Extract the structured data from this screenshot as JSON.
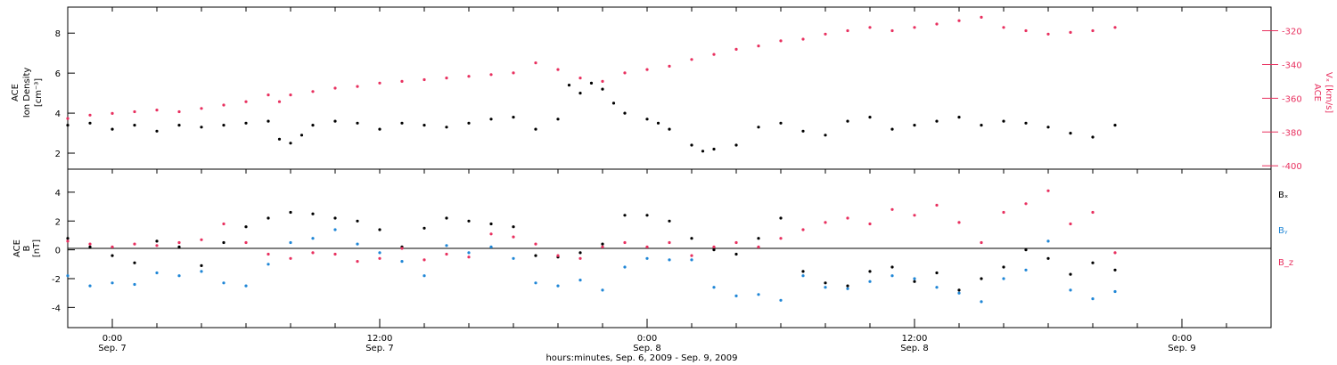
{
  "colors": {
    "black": "#000000",
    "pink": "#e8305f",
    "blue": "#1f86d6"
  },
  "chart_data": [
    {
      "type": "scatter",
      "panel": "top",
      "xlabel": "hours:minutes, Sep. 6, 2009 - Sep. 9, 2009",
      "x_ticks": [
        {
          "time": "0:00",
          "date": "Sep. 7",
          "hour": 24
        },
        {
          "time": "12:00",
          "date": "Sep. 7",
          "hour": 36
        },
        {
          "time": "0:00",
          "date": "Sep. 8",
          "hour": 48
        },
        {
          "time": "12:00",
          "date": "Sep. 8",
          "hour": 60
        },
        {
          "time": "0:00",
          "date": "Sep. 9",
          "hour": 72
        }
      ],
      "xlim_hours": [
        22,
        76
      ],
      "ylabel_left": [
        "ACE",
        "Ion Density",
        "[cm⁻³]"
      ],
      "ylim_left": [
        1.2,
        9.3
      ],
      "yticks_left": [
        2,
        4,
        6,
        8
      ],
      "ylabel_right": [
        "ACE",
        "Vₓ [km/s]"
      ],
      "ylim_right": [
        -402,
        -306
      ],
      "yticks_right": [
        -320,
        -340,
        -360,
        -380,
        -400
      ],
      "series": [
        {
          "color": "#000000",
          "axis": "left",
          "points": [
            [
              22,
              3.4
            ],
            [
              23,
              3.5
            ],
            [
              24,
              3.2
            ],
            [
              25,
              3.4
            ],
            [
              26,
              3.1
            ],
            [
              27,
              3.4
            ],
            [
              28,
              3.3
            ],
            [
              29,
              3.4
            ],
            [
              30,
              3.5
            ],
            [
              31,
              3.6
            ],
            [
              31.5,
              2.7
            ],
            [
              32,
              2.5
            ],
            [
              32.5,
              2.9
            ],
            [
              33,
              3.4
            ],
            [
              34,
              3.6
            ],
            [
              35,
              3.5
            ],
            [
              36,
              3.2
            ],
            [
              37,
              3.5
            ],
            [
              38,
              3.4
            ],
            [
              39,
              3.3
            ],
            [
              40,
              3.5
            ],
            [
              41,
              3.7
            ],
            [
              42,
              3.8
            ],
            [
              43,
              3.2
            ],
            [
              44,
              3.7
            ],
            [
              44.5,
              5.4
            ],
            [
              45,
              5.0
            ],
            [
              45.5,
              5.5
            ],
            [
              46,
              5.2
            ],
            [
              46.5,
              4.5
            ],
            [
              47,
              4.0
            ],
            [
              48,
              3.7
            ],
            [
              48.5,
              3.5
            ],
            [
              49,
              3.2
            ],
            [
              50,
              2.4
            ],
            [
              50.5,
              2.1
            ],
            [
              51,
              2.2
            ],
            [
              52,
              2.4
            ],
            [
              53,
              3.3
            ],
            [
              54,
              3.5
            ],
            [
              55,
              3.1
            ],
            [
              56,
              2.9
            ],
            [
              57,
              3.6
            ],
            [
              58,
              3.8
            ],
            [
              59,
              3.2
            ],
            [
              60,
              3.4
            ],
            [
              61,
              3.6
            ],
            [
              62,
              3.8
            ],
            [
              63,
              3.4
            ],
            [
              64,
              3.6
            ],
            [
              65,
              3.5
            ],
            [
              66,
              3.3
            ],
            [
              67,
              3.0
            ],
            [
              68,
              2.8
            ],
            [
              69,
              3.4
            ]
          ]
        },
        {
          "color": "#e8305f",
          "axis": "right",
          "points": [
            [
              22,
              -372
            ],
            [
              23,
              -370
            ],
            [
              24,
              -369
            ],
            [
              25,
              -368
            ],
            [
              26,
              -367
            ],
            [
              27,
              -368
            ],
            [
              28,
              -366
            ],
            [
              29,
              -364
            ],
            [
              30,
              -362
            ],
            [
              31,
              -358
            ],
            [
              31.5,
              -362
            ],
            [
              32,
              -358
            ],
            [
              33,
              -356
            ],
            [
              34,
              -354
            ],
            [
              35,
              -353
            ],
            [
              36,
              -351
            ],
            [
              37,
              -350
            ],
            [
              38,
              -349
            ],
            [
              39,
              -348
            ],
            [
              40,
              -347
            ],
            [
              41,
              -346
            ],
            [
              42,
              -345
            ],
            [
              43,
              -339
            ],
            [
              44,
              -343
            ],
            [
              45,
              -348
            ],
            [
              46,
              -350
            ],
            [
              47,
              -345
            ],
            [
              48,
              -343
            ],
            [
              49,
              -341
            ],
            [
              50,
              -337
            ],
            [
              51,
              -334
            ],
            [
              52,
              -331
            ],
            [
              53,
              -329
            ],
            [
              54,
              -326
            ],
            [
              55,
              -325
            ],
            [
              56,
              -322
            ],
            [
              57,
              -320
            ],
            [
              58,
              -318
            ],
            [
              59,
              -320
            ],
            [
              60,
              -318
            ],
            [
              61,
              -316
            ],
            [
              62,
              -314
            ],
            [
              63,
              -312
            ],
            [
              64,
              -318
            ],
            [
              65,
              -320
            ],
            [
              66,
              -322
            ],
            [
              67,
              -321
            ],
            [
              68,
              -320
            ],
            [
              69,
              -318
            ]
          ]
        }
      ]
    },
    {
      "type": "scatter",
      "panel": "bottom",
      "ylabel": [
        "ACE",
        "B",
        "[nT]"
      ],
      "ylim": [
        -5.4,
        5.6
      ],
      "yticks": [
        4,
        2,
        0,
        -2,
        -4
      ],
      "zero_line": true,
      "legend": [
        "Bₓ",
        "Bᵧ",
        "B_z"
      ],
      "series": [
        {
          "name": "Bₓ",
          "color": "#000000",
          "points": [
            [
              22,
              0.8
            ],
            [
              23,
              0.2
            ],
            [
              24,
              -0.4
            ],
            [
              25,
              -0.9
            ],
            [
              26,
              0.6
            ],
            [
              27,
              0.2
            ],
            [
              28,
              -1.1
            ],
            [
              29,
              0.5
            ],
            [
              30,
              1.6
            ],
            [
              31,
              2.2
            ],
            [
              32,
              2.6
            ],
            [
              33,
              2.5
            ],
            [
              34,
              2.2
            ],
            [
              35,
              2.0
            ],
            [
              36,
              1.4
            ],
            [
              37,
              0.2
            ],
            [
              38,
              1.5
            ],
            [
              39,
              2.2
            ],
            [
              40,
              2.0
            ],
            [
              41,
              1.8
            ],
            [
              42,
              1.6
            ],
            [
              43,
              -0.4
            ],
            [
              44,
              -0.5
            ],
            [
              45,
              -0.2
            ],
            [
              46,
              0.4
            ],
            [
              47,
              2.4
            ],
            [
              48,
              2.4
            ],
            [
              49,
              2.0
            ],
            [
              50,
              0.8
            ],
            [
              51,
              0.0
            ],
            [
              52,
              -0.3
            ],
            [
              53,
              0.8
            ],
            [
              54,
              2.2
            ],
            [
              55,
              -1.5
            ],
            [
              56,
              -2.3
            ],
            [
              57,
              -2.5
            ],
            [
              58,
              -1.5
            ],
            [
              59,
              -1.2
            ],
            [
              60,
              -2.2
            ],
            [
              61,
              -1.6
            ],
            [
              62,
              -2.8
            ],
            [
              63,
              -2.0
            ],
            [
              64,
              -1.2
            ],
            [
              65,
              0.0
            ],
            [
              66,
              -0.6
            ],
            [
              67,
              -1.7
            ],
            [
              68,
              -0.9
            ],
            [
              69,
              -1.4
            ]
          ]
        },
        {
          "name": "Bᵧ",
          "color": "#1f86d6",
          "points": [
            [
              22,
              -1.8
            ],
            [
              23,
              -2.5
            ],
            [
              24,
              -2.3
            ],
            [
              25,
              -2.4
            ],
            [
              26,
              -1.6
            ],
            [
              27,
              -1.8
            ],
            [
              28,
              -1.5
            ],
            [
              29,
              -2.3
            ],
            [
              30,
              -2.5
            ],
            [
              31,
              -1.0
            ],
            [
              32,
              0.5
            ],
            [
              33,
              0.8
            ],
            [
              34,
              1.4
            ],
            [
              35,
              0.4
            ],
            [
              36,
              -0.2
            ],
            [
              37,
              -0.8
            ],
            [
              38,
              -1.8
            ],
            [
              39,
              0.3
            ],
            [
              40,
              -0.2
            ],
            [
              41,
              0.2
            ],
            [
              42,
              -0.6
            ],
            [
              43,
              -2.3
            ],
            [
              44,
              -2.5
            ],
            [
              45,
              -2.1
            ],
            [
              46,
              -2.8
            ],
            [
              47,
              -1.2
            ],
            [
              48,
              -0.6
            ],
            [
              49,
              -0.7
            ],
            [
              50,
              -0.7
            ],
            [
              51,
              -2.6
            ],
            [
              52,
              -3.2
            ],
            [
              53,
              -3.1
            ],
            [
              54,
              -3.5
            ],
            [
              55,
              -1.8
            ],
            [
              56,
              -2.6
            ],
            [
              57,
              -2.7
            ],
            [
              58,
              -2.2
            ],
            [
              59,
              -1.8
            ],
            [
              60,
              -2.0
            ],
            [
              61,
              -2.6
            ],
            [
              62,
              -3.0
            ],
            [
              63,
              -3.6
            ],
            [
              64,
              -2.0
            ],
            [
              65,
              -1.4
            ],
            [
              66,
              0.6
            ],
            [
              67,
              -2.8
            ],
            [
              68,
              -3.4
            ],
            [
              69,
              -2.9
            ]
          ]
        },
        {
          "name": "B_z",
          "color": "#e8305f",
          "points": [
            [
              22,
              0.6
            ],
            [
              23,
              0.4
            ],
            [
              24,
              0.2
            ],
            [
              25,
              0.4
            ],
            [
              26,
              0.3
            ],
            [
              27,
              0.5
            ],
            [
              28,
              0.7
            ],
            [
              29,
              1.8
            ],
            [
              30,
              0.5
            ],
            [
              31,
              -0.3
            ],
            [
              32,
              -0.6
            ],
            [
              33,
              -0.2
            ],
            [
              34,
              -0.3
            ],
            [
              35,
              -0.8
            ],
            [
              36,
              -0.6
            ],
            [
              37,
              0.1
            ],
            [
              38,
              -0.7
            ],
            [
              39,
              -0.3
            ],
            [
              40,
              -0.5
            ],
            [
              41,
              1.1
            ],
            [
              42,
              0.9
            ],
            [
              43,
              0.4
            ],
            [
              44,
              -0.4
            ],
            [
              45,
              -0.6
            ],
            [
              46,
              0.2
            ],
            [
              47,
              0.5
            ],
            [
              48,
              0.2
            ],
            [
              49,
              0.5
            ],
            [
              50,
              -0.4
            ],
            [
              51,
              0.2
            ],
            [
              52,
              0.5
            ],
            [
              53,
              0.2
            ],
            [
              54,
              0.8
            ],
            [
              55,
              1.4
            ],
            [
              56,
              1.9
            ],
            [
              57,
              2.2
            ],
            [
              58,
              1.8
            ],
            [
              59,
              2.8
            ],
            [
              60,
              2.4
            ],
            [
              61,
              3.1
            ],
            [
              62,
              1.9
            ],
            [
              63,
              0.5
            ],
            [
              64,
              2.6
            ],
            [
              65,
              3.2
            ],
            [
              66,
              4.1
            ],
            [
              67,
              1.8
            ],
            [
              68,
              2.6
            ],
            [
              69,
              -0.2
            ]
          ]
        }
      ]
    }
  ]
}
